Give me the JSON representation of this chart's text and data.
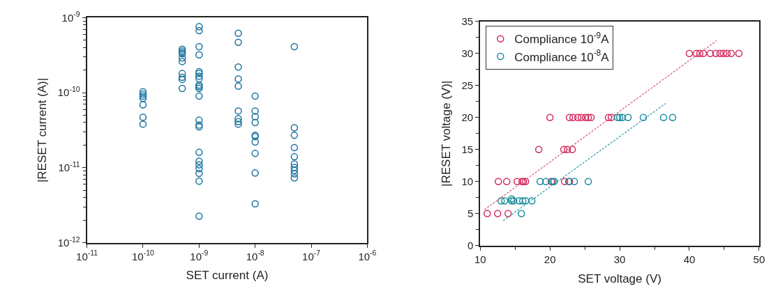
{
  "chart_data": [
    {
      "type": "scatter",
      "xlabel": "SET current (A)",
      "ylabel": "|RESET current (A)|",
      "log": "xy",
      "marker": "circle",
      "legend": false,
      "xlim": [
        1e-11,
        1e-06
      ],
      "ylim": [
        1e-12,
        1e-09
      ],
      "xticks": [
        {
          "value": 1e-11,
          "label": "10$^{-11}$"
        },
        {
          "value": 1e-10,
          "label": "10$^{-10}$"
        },
        {
          "value": 1e-09,
          "label": "10$^{-9}$"
        },
        {
          "value": 1e-08,
          "label": "10$^{-8}$"
        },
        {
          "value": 1e-07,
          "label": "10$^{-7}$"
        },
        {
          "value": 1e-06,
          "label": "10$^{-6}$"
        }
      ],
      "yticks": [
        {
          "value": 1e-12,
          "label": "10$^{-12}$"
        },
        {
          "value": 1e-11,
          "label": "10$^{-11}$"
        },
        {
          "value": 1e-10,
          "label": "10$^{-10}$"
        },
        {
          "value": 1e-09,
          "label": "10$^{-9}$"
        }
      ],
      "series": [
        {
          "color": "#1a73a0",
          "x": [
            1e-10,
            1e-10,
            1e-10,
            1e-10,
            1e-10,
            1e-10,
            1e-10,
            5e-10,
            5e-10,
            5e-10,
            5e-10,
            5e-10,
            5e-10,
            5e-10,
            5e-10,
            5e-10,
            5e-10,
            1e-09,
            1e-09,
            1e-09,
            1e-09,
            1e-09,
            1e-09,
            1e-09,
            1e-09,
            1e-09,
            1e-09,
            1e-09,
            1e-09,
            1e-09,
            1e-09,
            1e-09,
            1e-09,
            1e-09,
            1e-09,
            1e-09,
            1e-09,
            1e-09,
            1e-09,
            5e-09,
            5e-09,
            5e-09,
            5e-09,
            5e-09,
            5e-09,
            5e-09,
            5e-09,
            5e-09,
            1e-08,
            1e-08,
            1e-08,
            1e-08,
            1e-08,
            1e-08,
            1e-08,
            1e-08,
            1e-08,
            1e-08,
            5e-08,
            5e-08,
            5e-08,
            5e-08,
            5e-08,
            5e-08,
            5e-08,
            5e-08,
            5e-08,
            5e-08
          ],
          "values": [
            1.03e-10,
            9.6e-11,
            9e-11,
            8.4e-11,
            6.9e-11,
            4.7e-11,
            3.8e-11,
            3.8e-10,
            3.6e-10,
            3.4e-10,
            3.3e-10,
            2.9e-10,
            2.6e-10,
            1.8e-10,
            1.6e-10,
            1.5e-10,
            1.14e-10,
            7.6e-10,
            6.7e-10,
            4.1e-10,
            3.2e-10,
            1.9e-10,
            1.8e-10,
            1.66e-10,
            1.53e-10,
            1.26e-10,
            1.2e-10,
            1.14e-10,
            9e-11,
            4.3e-11,
            3.7e-11,
            3.5e-11,
            1.6e-11,
            1.22e-11,
            1.09e-11,
            9.7e-12,
            8.4e-12,
            6.6e-12,
            2.26e-12,
            6.2e-10,
            4.7e-10,
            2.2e-10,
            1.52e-10,
            1.22e-10,
            5.7e-11,
            4.5e-11,
            4.1e-11,
            3.8e-11,
            9e-11,
            5.7e-11,
            4.8e-11,
            4e-11,
            2.7e-11,
            2.6e-11,
            2.2e-11,
            1.55e-11,
            8.5e-12,
            3.3e-12,
            4.1e-10,
            3.4e-11,
            2.7e-11,
            1.85e-11,
            1.4e-11,
            1.12e-11,
            1.01e-11,
            9.2e-12,
            8.3e-12,
            7.3e-12
          ]
        }
      ]
    },
    {
      "type": "scatter",
      "xlabel": "SET voltage (V)",
      "ylabel": "|RESET voltage (V)|",
      "marker": "circle",
      "legend": "top left",
      "xlim": [
        10,
        50
      ],
      "ylim": [
        0,
        35
      ],
      "xticks": [
        10,
        20,
        30,
        40,
        50
      ],
      "yticks": [
        0,
        5,
        10,
        15,
        20,
        25,
        30,
        35
      ],
      "series": [
        {
          "name": "Compliance 10$^{-9}$A",
          "color": "#d42a5e",
          "x": [
            11.0,
            12.5,
            14.0,
            12.6,
            13.8,
            15.3,
            16.0,
            16.2,
            16.5,
            20.2,
            20.5,
            22.1,
            22.8,
            18.4,
            22.0,
            22.5,
            23.2,
            20.0,
            22.8,
            23.3,
            24.0,
            24.5,
            25.1,
            25.5,
            25.9,
            28.4,
            28.8,
            40.0,
            41.0,
            41.5,
            42.0,
            43.0,
            43.8,
            44.4,
            44.9,
            45.4,
            46.0,
            47.1
          ],
          "values": [
            5,
            5,
            5,
            10,
            10,
            10,
            10,
            10,
            10,
            10,
            null,
            10,
            10,
            15,
            15,
            15,
            15,
            20,
            20,
            20,
            20,
            20,
            20,
            20,
            20,
            20,
            20,
            30,
            30,
            30,
            30,
            30,
            30,
            30,
            30,
            30,
            30,
            30
          ]
        },
        {
          "name": "Compliance 10$^{-8}$A",
          "color": "#1a8c9c",
          "x": [
            13.0,
            13.5,
            14.5,
            14.8,
            15.6,
            16.1,
            16.5,
            17.4,
            14.5,
            15.9,
            18.6,
            19.4,
            20.4,
            20.6,
            22.7,
            23.5,
            25.5,
            29.7,
            30.0,
            30.4,
            31.2,
            33.4,
            36.3,
            37.6
          ],
          "values": [
            7,
            7,
            7,
            7,
            7,
            7,
            7,
            7,
            7.3,
            5,
            10,
            10,
            10,
            10,
            10,
            10,
            10,
            20,
            20,
            20,
            20,
            20,
            20,
            20
          ]
        },
        {
          "type": "line",
          "line_style": "dashed",
          "marker": "none",
          "color": "#e0507a",
          "x": [
            10.6,
            43.9
          ],
          "values": [
            5.6,
            32.0
          ]
        },
        {
          "type": "line",
          "line_style": "dashed",
          "marker": "none",
          "color": "#2a98a8",
          "x": [
            13.3,
            36.6
          ],
          "values": [
            3.9,
            22.2
          ]
        }
      ]
    }
  ]
}
